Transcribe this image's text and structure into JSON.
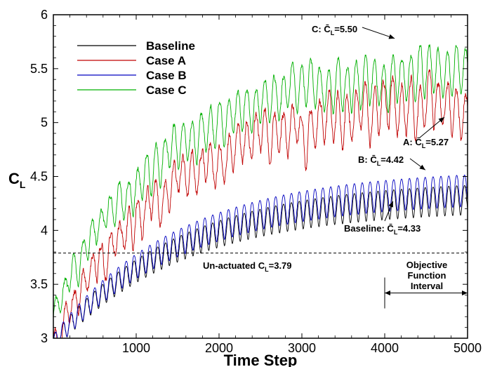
{
  "chart_data": {
    "type": "line",
    "xlabel": "Time Step",
    "ylabel_main": "C",
    "ylabel_sub": "L",
    "xlim": [
      0,
      5000
    ],
    "ylim": [
      3,
      6
    ],
    "xticks": [
      "1000",
      "2000",
      "3000",
      "4000",
      "5000"
    ],
    "yticks": [
      "3",
      "3.5",
      "4",
      "4.5",
      "5",
      "5.5",
      "6"
    ],
    "xtick_values": [
      1000,
      2000,
      3000,
      4000,
      5000
    ],
    "ytick_values": [
      3,
      3.5,
      4,
      4.5,
      5,
      5.5,
      6
    ],
    "legend_position": "top-left",
    "grid": false,
    "series": [
      {
        "name": "Baseline",
        "color": "#000000",
        "mean_final": 4.33,
        "start": 2.95,
        "amplitude_final": 0.14,
        "period": 95,
        "tau": 1500,
        "noise": 0.0
      },
      {
        "name": "Case A",
        "color": "#c00000",
        "mean_final": 5.27,
        "start": 3.0,
        "amplitude_final": 0.22,
        "period": 110,
        "tau": 1500,
        "noise": 0.18
      },
      {
        "name": "Case B",
        "color": "#0000c0",
        "mean_final": 4.42,
        "start": 2.95,
        "amplitude_final": 0.15,
        "period": 95,
        "tau": 1500,
        "noise": 0.0
      },
      {
        "name": "Case C",
        "color": "#00b000",
        "mean_final": 5.5,
        "start": 3.2,
        "amplitude_final": 0.22,
        "period": 110,
        "tau": 1300,
        "noise": 0.12
      }
    ],
    "reference_line": {
      "y": 3.79,
      "label": "Un-actuated C",
      "label_sub": "L",
      "label_value": "=3.79"
    },
    "annotations": [
      {
        "prefix": "C: ",
        "symbol": "C̄",
        "sub": "L",
        "value": "=5.50",
        "arrow_to": [
          4120,
          5.78
        ]
      },
      {
        "prefix": "A: ",
        "symbol": "C̄",
        "sub": "L",
        "value": "=5.27",
        "arrow_to": [
          4720,
          5.05
        ]
      },
      {
        "prefix": "B: ",
        "symbol": "C̄",
        "sub": "L",
        "value": "=4.42",
        "arrow_to": [
          4490,
          4.56
        ]
      },
      {
        "prefix": "Baseline: ",
        "symbol": "C̄",
        "sub": "L",
        "value": "=4.33",
        "arrow_to": [
          4100,
          4.27
        ]
      }
    ],
    "objective_interval": {
      "label_lines": [
        "Objective",
        "Function",
        "Interval"
      ],
      "x_start": 4000,
      "x_end": 5000,
      "y": 3.42
    }
  }
}
